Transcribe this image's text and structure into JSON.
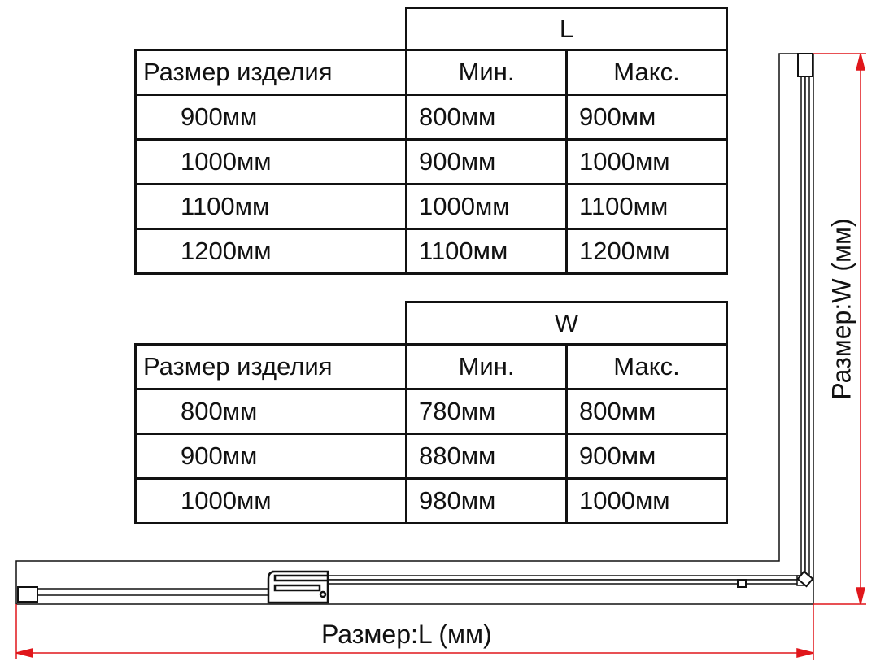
{
  "table_length": {
    "group_header": "L",
    "columns": [
      "Размер изделия",
      "Мин.",
      "Макс."
    ],
    "rows": [
      [
        "900мм",
        "800мм",
        "900мм"
      ],
      [
        "1000мм",
        "900мм",
        "1000мм"
      ],
      [
        "1100мм",
        "1000мм",
        "1100мм"
      ],
      [
        "1200мм",
        "1100мм",
        "1200мм"
      ]
    ]
  },
  "table_width": {
    "group_header": "W",
    "columns": [
      "Размер изделия",
      "Мин.",
      "Макс."
    ],
    "rows": [
      [
        "800мм",
        "780мм",
        "800мм"
      ],
      [
        "900мм",
        "880мм",
        "900мм"
      ],
      [
        "1000мм",
        "980мм",
        "1000мм"
      ]
    ]
  },
  "drawing": {
    "length_label": "Размер:L (мм)",
    "width_label": "Размер:W (мм)",
    "dimension_color": "#e0161b",
    "line_color": "#111111"
  }
}
